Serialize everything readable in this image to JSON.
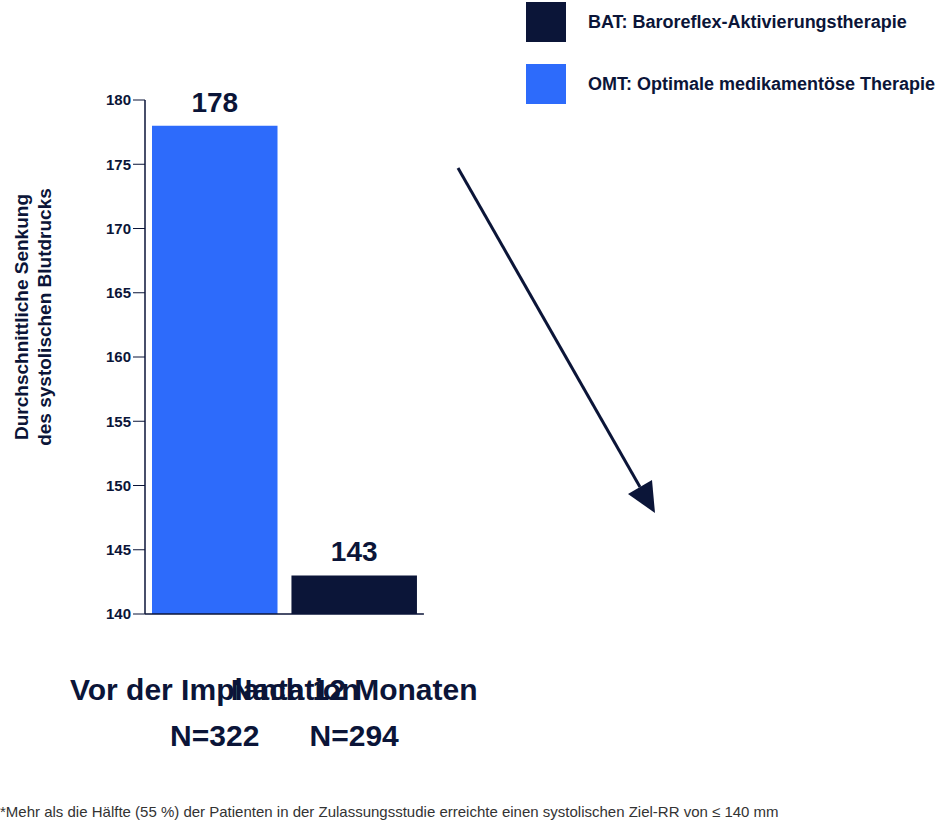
{
  "chart_data": {
    "type": "bar",
    "categories": [
      "Vor der Implantation",
      "Nach 12 Monaten"
    ],
    "category_notes": [
      "N=322",
      "N=294"
    ],
    "series": [
      {
        "name": "OMT: Optimale medikamentöse Therapie",
        "color": "#2d6bfb",
        "values": [
          178,
          null
        ]
      },
      {
        "name": "BAT: Baroreflex-Aktivierungstherapie",
        "color": "#0b1538",
        "values": [
          null,
          143
        ]
      }
    ],
    "y_label": "Durchschnittliche Senkung des systolischen Blutdrucks",
    "ylim": [
      140,
      180
    ],
    "yticks": [
      140,
      145,
      150,
      155,
      160,
      165,
      170,
      175,
      180
    ],
    "stacked": true,
    "data_labels": true,
    "grid": false,
    "legend": "top-right",
    "footnote": "*Mehr als die Hälfte (55 %) der Patienten in der Zulassungsstudie erreichte einen systolischen Ziel-RR von ≤ 140 mm"
  }
}
